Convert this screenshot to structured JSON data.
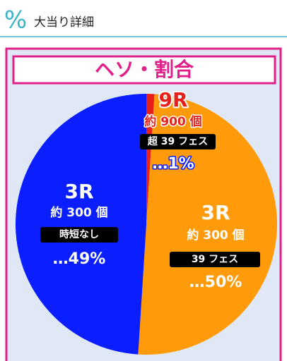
{
  "header": {
    "icon": "%",
    "title": "大当り詳細"
  },
  "chart_data": {
    "type": "pie",
    "title": "ヘソ・割合",
    "categories": [
      "9R",
      "3R",
      "3R"
    ],
    "counts": [
      "約 900 個",
      "約 300 個",
      "約 300 個"
    ],
    "notes": [
      "超 39 フェス",
      "39 フェス",
      "時短なし"
    ],
    "values": [
      1,
      50,
      49
    ],
    "value_labels": [
      "…1%",
      "…50%",
      "…49%"
    ],
    "colors": [
      "#e8201a",
      "#ff9a0a",
      "#0a1eff"
    ]
  }
}
